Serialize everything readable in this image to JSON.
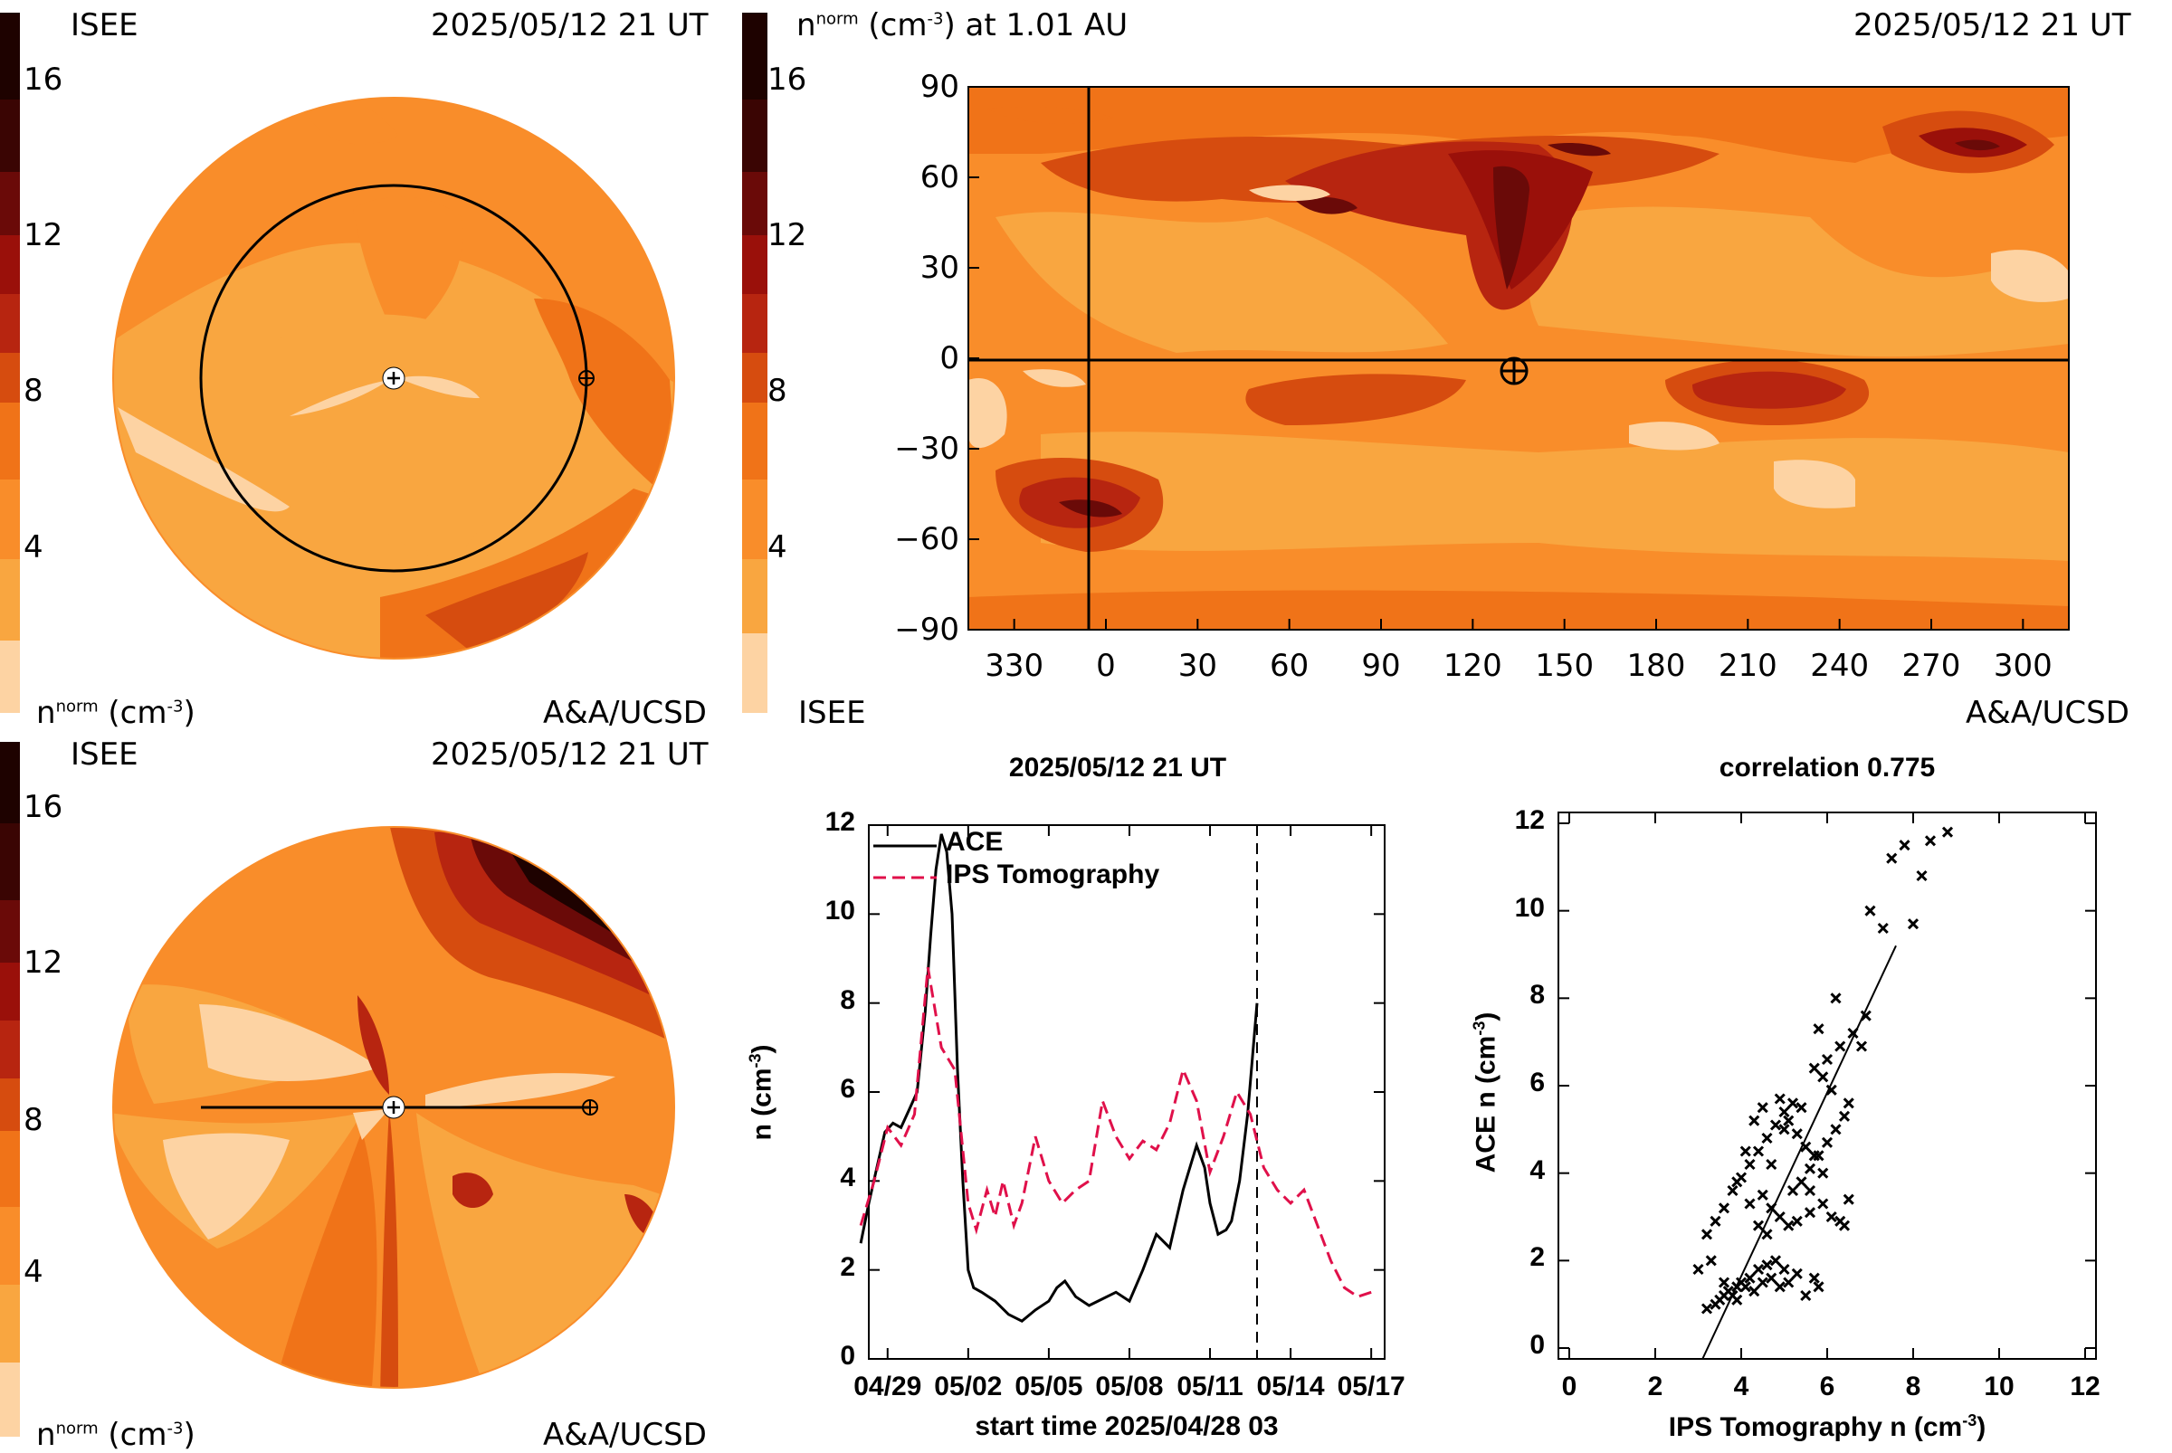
{
  "palette": {
    "levels": [
      "#fdd3a3",
      "#f9a640",
      "#f98d2a",
      "#f07318",
      "#d64c0f",
      "#b72510",
      "#9a100a",
      "#6a0a08",
      "#3a0503",
      "#1e0200"
    ],
    "colorbar_ticks": [
      "4",
      "8",
      "12",
      "16"
    ]
  },
  "panel_tl": {
    "source": "ISEE",
    "timestamp": "2025/05/12 21 UT",
    "unit_label": "n",
    "unit_sup": "norm",
    "unit_rest": " (cm",
    "unit_exp": "-3",
    "unit_close": ")",
    "credit": "A&A/UCSD"
  },
  "panel_bl": {
    "source": "ISEE",
    "timestamp": "2025/05/12 21 UT",
    "unit_label": "n",
    "unit_sup": "norm",
    "unit_rest": " (cm",
    "unit_exp": "-3",
    "unit_close": ")",
    "credit": "A&A/UCSD"
  },
  "panel_tr": {
    "title_n": "n",
    "title_sup": "norm",
    "title_rest": " (cm",
    "title_exp": "-3",
    "title_close": ") at 1.01 AU",
    "timestamp": "2025/05/12 21 UT",
    "source": "ISEE",
    "credit": "A&A/UCSD",
    "x_ticks": [
      "330",
      "0",
      "30",
      "60",
      "90",
      "120",
      "150",
      "180",
      "210",
      "240",
      "270",
      "300"
    ],
    "y_ticks": [
      "90",
      "60",
      "30",
      "0",
      "−30",
      "−60",
      "−90"
    ]
  },
  "chart_data": [
    {
      "type": "line",
      "title": "2025/05/12 21 UT",
      "xlabel": "start time 2025/04/28 03",
      "ylabel": "n (cm-3)",
      "ylabel_main": "n (cm",
      "ylabel_exp": "-3",
      "ylabel_close": ")",
      "x_tick_labels": [
        "04/29",
        "05/02",
        "05/05",
        "05/08",
        "05/11",
        "05/14",
        "05/17"
      ],
      "x_ticks_days": [
        1,
        4,
        7,
        10,
        13,
        16,
        19
      ],
      "xlim_days": [
        0.3,
        19.5
      ],
      "ylim": [
        0,
        12
      ],
      "y_ticks": [
        "0",
        "2",
        "4",
        "6",
        "8",
        "10",
        "12"
      ],
      "current_time_day": 14.75,
      "series": [
        {
          "name": "ACE",
          "color": "#000000",
          "dash": "",
          "x": [
            0,
            0.3,
            0.6,
            0.9,
            1.2,
            1.5,
            1.8,
            2.1,
            2.4,
            2.6,
            2.8,
            3.0,
            3.2,
            3.4,
            3.6,
            3.8,
            4.0,
            4.2,
            4.5,
            5.0,
            5.5,
            6.0,
            6.5,
            7.0,
            7.3,
            7.6,
            8.0,
            8.5,
            9.0,
            9.5,
            10.0,
            10.5,
            11.0,
            11.5,
            12.0,
            12.5,
            12.8,
            13.0,
            13.3,
            13.6,
            13.8,
            14.1,
            14.4,
            14.75
          ],
          "y": [
            2.6,
            3.5,
            4.3,
            5.1,
            5.3,
            5.2,
            5.6,
            6.0,
            7.8,
            9.5,
            11.0,
            11.8,
            11.4,
            10.0,
            6.5,
            4.0,
            2.0,
            1.6,
            1.5,
            1.3,
            1.0,
            0.85,
            1.1,
            1.3,
            1.6,
            1.75,
            1.4,
            1.2,
            1.35,
            1.5,
            1.3,
            2.0,
            2.8,
            2.5,
            3.8,
            4.8,
            4.3,
            3.5,
            2.8,
            2.9,
            3.1,
            4.0,
            5.5,
            8.0
          ]
        },
        {
          "name": "IPS Tomography",
          "color": "#e0104a",
          "dash": "14,7",
          "x": [
            0,
            0.5,
            1.0,
            1.5,
            2.0,
            2.5,
            3.0,
            3.5,
            4.0,
            4.3,
            4.7,
            5.0,
            5.3,
            5.7,
            6.0,
            6.5,
            7.0,
            7.5,
            8.0,
            8.5,
            9.0,
            9.5,
            10.0,
            10.5,
            11.0,
            11.5,
            12.0,
            12.5,
            13.0,
            13.5,
            14.0,
            14.5,
            15.0,
            15.5,
            16.0,
            16.5,
            17.0,
            17.5,
            18.0,
            18.5,
            19.0
          ],
          "y": [
            3.0,
            4.0,
            5.2,
            4.8,
            5.5,
            8.8,
            7.0,
            6.5,
            3.5,
            2.9,
            3.8,
            3.2,
            4.0,
            3.0,
            3.5,
            5.0,
            4.0,
            3.5,
            3.8,
            4.0,
            5.8,
            5.0,
            4.5,
            4.9,
            4.7,
            5.3,
            6.5,
            5.8,
            4.2,
            5.0,
            6.0,
            5.5,
            4.3,
            3.8,
            3.5,
            3.8,
            3.0,
            2.2,
            1.6,
            1.4,
            1.5
          ]
        }
      ]
    },
    {
      "type": "scatter",
      "title": "correlation 0.775",
      "xlabel": "IPS Tomography n (cm-3)",
      "xlabel_main": "IPS Tomography n (cm",
      "xlabel_exp": "-3",
      "xlabel_close": ")",
      "ylabel": "ACE n (cm-3)",
      "ylabel_main": "ACE n (cm",
      "ylabel_exp": "-3",
      "ylabel_close": ")",
      "xlim": [
        0,
        12
      ],
      "ylim": [
        0,
        12
      ],
      "x_ticks": [
        "0",
        "2",
        "4",
        "6",
        "8",
        "10",
        "12"
      ],
      "y_ticks": [
        "0",
        "2",
        "4",
        "6",
        "8",
        "10",
        "12"
      ],
      "fit_line": {
        "x": [
          3.1,
          7.6
        ],
        "y": [
          -0.3,
          9.2
        ]
      },
      "points": [
        [
          3.2,
          0.9
        ],
        [
          3.4,
          1.0
        ],
        [
          3.5,
          1.1
        ],
        [
          3.6,
          1.2
        ],
        [
          3.7,
          1.3
        ],
        [
          3.8,
          1.2
        ],
        [
          3.9,
          1.4
        ],
        [
          4.0,
          1.5
        ],
        [
          4.1,
          1.4
        ],
        [
          4.2,
          1.6
        ],
        [
          3.6,
          1.5
        ],
        [
          3.9,
          1.1
        ],
        [
          4.3,
          1.3
        ],
        [
          4.5,
          1.5
        ],
        [
          4.7,
          1.6
        ],
        [
          4.9,
          1.4
        ],
        [
          5.1,
          1.5
        ],
        [
          5.3,
          1.7
        ],
        [
          5.5,
          1.2
        ],
        [
          5.8,
          1.4
        ],
        [
          5.0,
          1.8
        ],
        [
          4.6,
          1.9
        ],
        [
          4.4,
          1.8
        ],
        [
          5.7,
          1.6
        ],
        [
          4.8,
          2.0
        ],
        [
          3.0,
          1.8
        ],
        [
          3.3,
          2.0
        ],
        [
          3.2,
          2.6
        ],
        [
          3.4,
          2.9
        ],
        [
          3.6,
          3.2
        ],
        [
          3.8,
          3.6
        ],
        [
          4.0,
          3.9
        ],
        [
          4.2,
          4.2
        ],
        [
          4.4,
          4.5
        ],
        [
          4.6,
          4.8
        ],
        [
          4.8,
          5.1
        ],
        [
          5.0,
          5.4
        ],
        [
          5.2,
          5.6
        ],
        [
          5.4,
          5.5
        ],
        [
          4.9,
          5.7
        ],
        [
          5.1,
          5.2
        ],
        [
          5.3,
          4.9
        ],
        [
          5.5,
          4.6
        ],
        [
          5.7,
          4.4
        ],
        [
          5.9,
          4.0
        ],
        [
          4.5,
          3.5
        ],
        [
          4.7,
          3.2
        ],
        [
          4.9,
          3.0
        ],
        [
          5.1,
          2.8
        ],
        [
          5.3,
          2.9
        ],
        [
          5.6,
          3.1
        ],
        [
          5.9,
          3.3
        ],
        [
          6.1,
          3.0
        ],
        [
          6.3,
          2.9
        ],
        [
          6.4,
          2.8
        ],
        [
          4.4,
          2.8
        ],
        [
          4.6,
          2.6
        ],
        [
          5.2,
          3.6
        ],
        [
          5.4,
          3.8
        ],
        [
          5.6,
          4.1
        ],
        [
          5.8,
          4.4
        ],
        [
          6.0,
          4.7
        ],
        [
          6.2,
          5.0
        ],
        [
          6.4,
          5.3
        ],
        [
          6.1,
          5.9
        ],
        [
          5.9,
          6.2
        ],
        [
          5.7,
          6.4
        ],
        [
          6.0,
          6.6
        ],
        [
          6.3,
          6.9
        ],
        [
          6.6,
          7.2
        ],
        [
          6.8,
          6.9
        ],
        [
          6.9,
          7.6
        ],
        [
          5.8,
          7.3
        ],
        [
          6.2,
          8.0
        ],
        [
          6.5,
          5.6
        ],
        [
          7.0,
          10.0
        ],
        [
          7.3,
          9.6
        ],
        [
          7.5,
          11.2
        ],
        [
          7.8,
          11.5
        ],
        [
          8.0,
          9.7
        ],
        [
          8.2,
          10.8
        ],
        [
          8.4,
          11.6
        ],
        [
          8.8,
          11.8
        ],
        [
          4.1,
          4.5
        ],
        [
          4.3,
          5.2
        ],
        [
          4.5,
          5.5
        ],
        [
          4.7,
          4.2
        ],
        [
          5.0,
          5.0
        ],
        [
          3.9,
          3.8
        ],
        [
          4.2,
          3.3
        ],
        [
          5.6,
          3.6
        ],
        [
          6.5,
          3.4
        ]
      ]
    }
  ]
}
